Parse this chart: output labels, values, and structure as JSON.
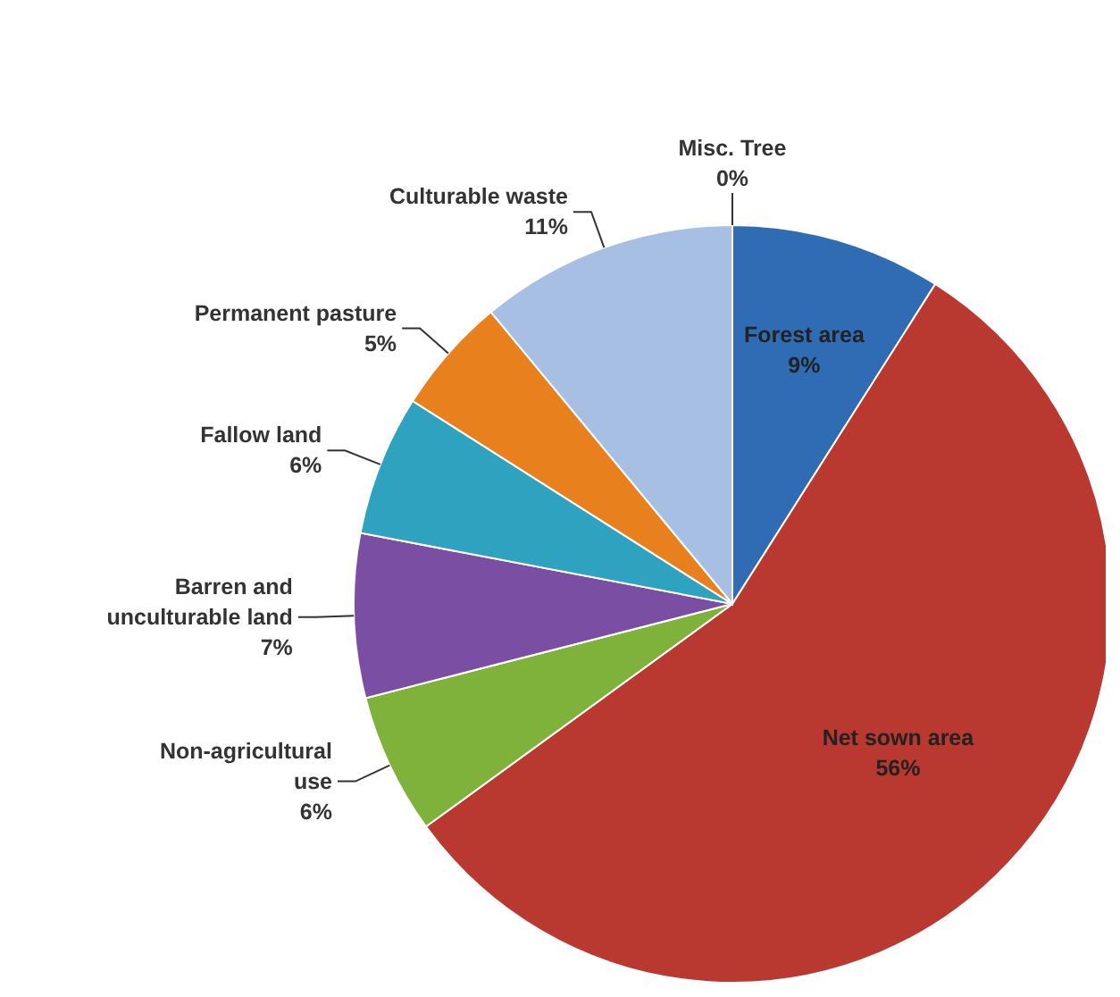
{
  "chart_data": {
    "type": "pie",
    "categories": [
      "Forest area",
      "Net sown area",
      "Non-agricultural use",
      "Barren and unculturable land",
      "Fallow land",
      "Permanent pasture",
      "Culturable waste",
      "Misc. Tree"
    ],
    "values": [
      9,
      56,
      6,
      7,
      6,
      5,
      11,
      0
    ],
    "value_labels": [
      "9%",
      "56%",
      "6%",
      "7%",
      "6%",
      "5%",
      "11%",
      "0%"
    ],
    "colors": [
      "#2f6cb3",
      "#b9382f",
      "#7fb23a",
      "#7a4ea3",
      "#2ea2bf",
      "#e8801d",
      "#a7bfe2",
      "#9aa0a8"
    ]
  }
}
